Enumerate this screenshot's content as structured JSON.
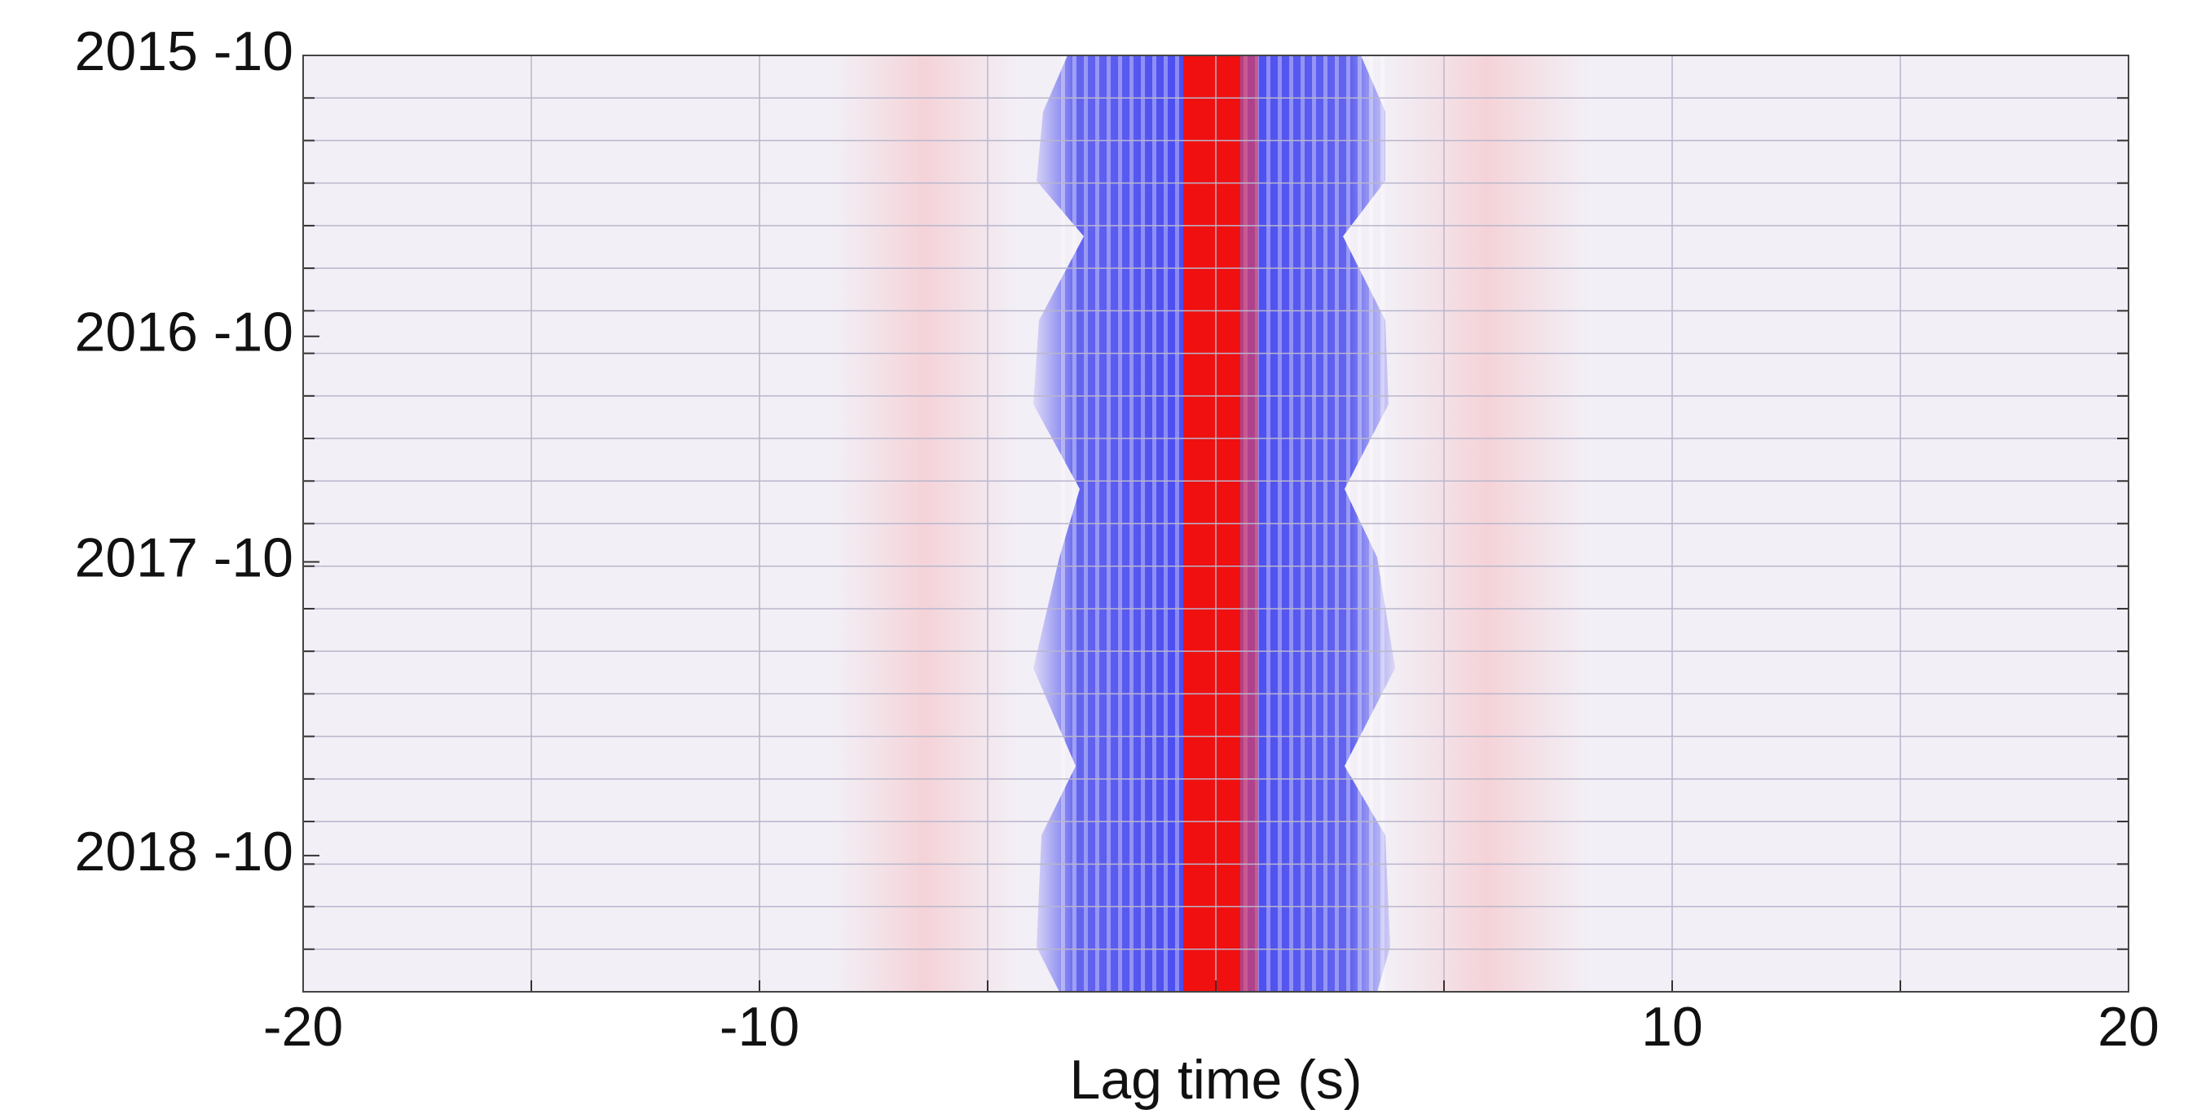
{
  "chart_data": {
    "type": "heatmap",
    "x_label": "Lag time (s)",
    "xlim": [
      -20,
      20
    ],
    "xticks": [
      -20,
      -10,
      10,
      20
    ],
    "xminor_ticks": [
      -15,
      -5,
      0,
      5,
      15
    ],
    "ylim": [
      0,
      22
    ],
    "yticks": [
      {
        "value": 0,
        "label": "2015 -10"
      },
      {
        "value": 6.6,
        "label": "2016 -10"
      },
      {
        "value": 11.9,
        "label": "2017 -10"
      },
      {
        "value": 18.8,
        "label": "2018 -10"
      }
    ],
    "yminor_ticks": [
      1,
      2,
      3,
      4,
      5,
      6,
      7,
      8,
      9,
      10,
      11,
      12,
      13,
      14,
      15,
      16,
      17,
      18,
      19,
      20,
      21
    ],
    "grid": true
  }
}
